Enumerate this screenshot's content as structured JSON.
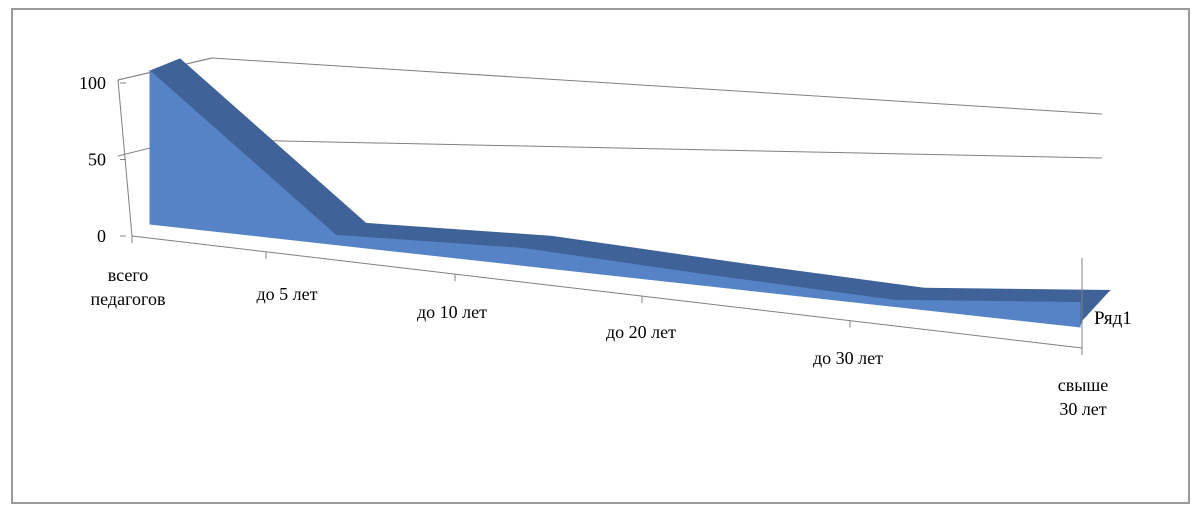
{
  "chart_data": {
    "type": "area",
    "style": "3d",
    "categories": [
      "всего педагогов",
      "до 5 лет",
      "до 10 лет",
      "до 20 лет",
      "до 30 лет",
      "свыше 30 лет"
    ],
    "series": [
      {
        "name": "Ряд1",
        "values": [
          100,
          6,
          11,
          7,
          4,
          16
        ]
      }
    ],
    "y_ticks": [
      "0",
      "50",
      "100"
    ],
    "ylim": [
      0,
      100
    ],
    "grid": true,
    "legend": "right",
    "colors": {
      "front": "#5683c6",
      "top": "#3f6298",
      "grid": "#808080",
      "axis": "#808080"
    }
  }
}
